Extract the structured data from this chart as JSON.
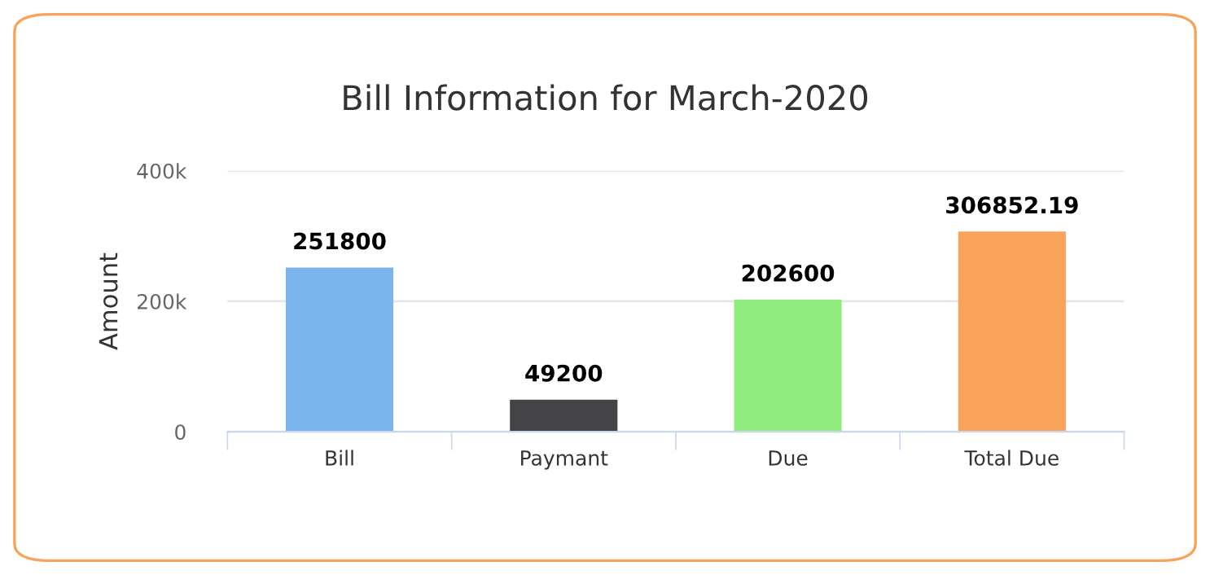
{
  "chart_data": {
    "type": "bar",
    "title": "Bill Information for March-2020",
    "ylabel": "Amount",
    "categories": [
      "Bill",
      "Paymant",
      "Due",
      "Total Due"
    ],
    "values": [
      251800,
      49200,
      202600,
      306852.19
    ],
    "colors": [
      "#7cb5ec",
      "#434348",
      "#90ed7d",
      "#f7a35c"
    ],
    "ylim": [
      0,
      400000
    ],
    "yticks": [
      {
        "value": 0,
        "label": "0"
      },
      {
        "value": 200000,
        "label": "200k"
      },
      {
        "value": 400000,
        "label": "400k"
      }
    ],
    "grid": "y",
    "data_labels": true,
    "legend": false
  }
}
